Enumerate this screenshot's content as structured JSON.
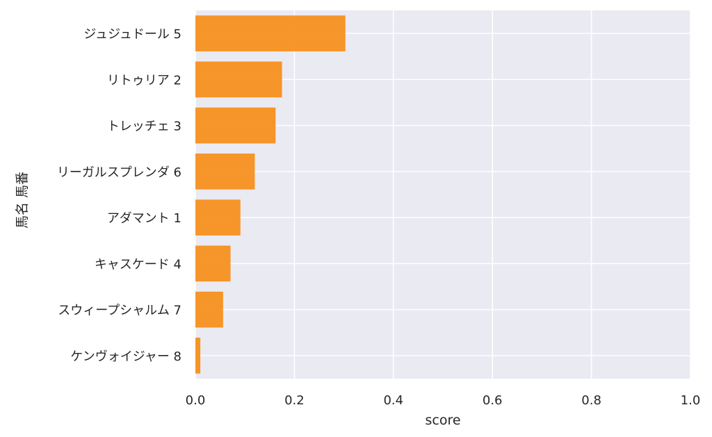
{
  "chart_data": {
    "type": "bar",
    "orientation": "horizontal",
    "categories": [
      "ジュジュドール 5",
      "リトゥリア 2",
      "トレッチェ 3",
      "リーガルスプレンダ 6",
      "アダマント 1",
      "キャスケード 4",
      "スウィープシャルム 7",
      "ケンヴォイジャー 8"
    ],
    "values": [
      0.303,
      0.175,
      0.162,
      0.12,
      0.091,
      0.071,
      0.056,
      0.01
    ],
    "xlabel": "score",
    "ylabel": "馬名 馬番",
    "xlim": [
      0.0,
      1.0
    ],
    "xticks": [
      "0.0",
      "0.2",
      "0.4",
      "0.6",
      "0.8",
      "1.0"
    ],
    "grid": true,
    "colors": {
      "bar": "#f7901e",
      "plot_background": "#eaeaf2",
      "grid": "#ffffff"
    }
  }
}
